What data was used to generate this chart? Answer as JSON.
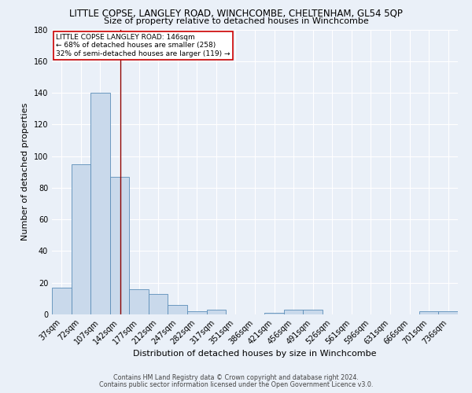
{
  "title": "LITTLE COPSE, LANGLEY ROAD, WINCHCOMBE, CHELTENHAM, GL54 5QP",
  "subtitle": "Size of property relative to detached houses in Winchcombe",
  "xlabel": "Distribution of detached houses by size in Winchcombe",
  "ylabel": "Number of detached properties",
  "footer1": "Contains HM Land Registry data © Crown copyright and database right 2024.",
  "footer2": "Contains public sector information licensed under the Open Government Licence v3.0.",
  "categories": [
    "37sqm",
    "72sqm",
    "107sqm",
    "142sqm",
    "177sqm",
    "212sqm",
    "247sqm",
    "282sqm",
    "317sqm",
    "351sqm",
    "386sqm",
    "421sqm",
    "456sqm",
    "491sqm",
    "526sqm",
    "561sqm",
    "596sqm",
    "631sqm",
    "666sqm",
    "701sqm",
    "736sqm"
  ],
  "values": [
    17,
    95,
    140,
    87,
    16,
    13,
    6,
    2,
    3,
    0,
    0,
    1,
    3,
    3,
    0,
    0,
    0,
    0,
    0,
    2,
    2
  ],
  "bar_color": "#c9d9eb",
  "bar_edge_color": "#5b8db8",
  "annotation_text": "LITTLE COPSE LANGLEY ROAD: 146sqm\n← 68% of detached houses are smaller (258)\n32% of semi-detached houses are larger (119) →",
  "annotation_box_color": "#ffffff",
  "annotation_box_edge": "#cc0000",
  "vline_color": "#8b0000",
  "ylim": [
    0,
    180
  ],
  "yticks": [
    0,
    20,
    40,
    60,
    80,
    100,
    120,
    140,
    160,
    180
  ],
  "bg_color": "#eaf0f8",
  "plot_bg_color": "#eaf0f8",
  "grid_color": "#ffffff",
  "title_fontsize": 8.5,
  "subtitle_fontsize": 8,
  "axis_label_fontsize": 8,
  "tick_fontsize": 7,
  "footer_fontsize": 5.8
}
